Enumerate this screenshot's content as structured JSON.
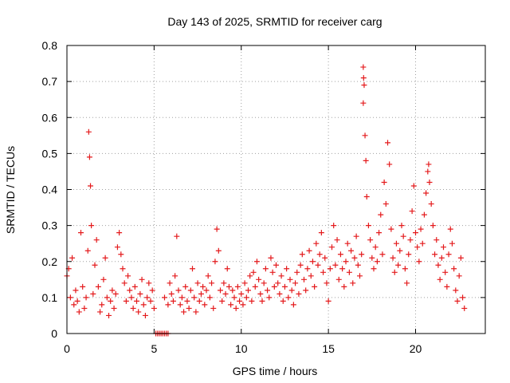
{
  "chart_data": {
    "type": "scatter",
    "title": "Day 143 of 2025, SRMTID for receiver carg",
    "xlabel": "GPS time / hours",
    "ylabel": "SRMTID / TECUs",
    "xlim": [
      0,
      24
    ],
    "ylim": [
      0,
      0.8
    ],
    "xticks": [
      0,
      5,
      10,
      15,
      20
    ],
    "xtick_labels": [
      "0",
      "5",
      "10",
      "15",
      "20"
    ],
    "yticks": [
      0,
      0.1,
      0.2,
      0.3,
      0.4,
      0.5,
      0.6,
      0.7,
      0.8
    ],
    "ytick_labels": [
      "0",
      "0.1",
      "0.2",
      "0.3",
      "0.4",
      "0.5",
      "0.6",
      "0.7",
      "0.8"
    ],
    "grid": true,
    "marker": "plus",
    "marker_color": "#e41a1c",
    "series": [
      {
        "name": "SRMTID",
        "points": [
          [
            0.0,
            0.16
          ],
          [
            0.1,
            0.18
          ],
          [
            0.2,
            0.1
          ],
          [
            0.3,
            0.21
          ],
          [
            0.4,
            0.08
          ],
          [
            0.5,
            0.12
          ],
          [
            0.6,
            0.09
          ],
          [
            0.7,
            0.06
          ],
          [
            0.8,
            0.28
          ],
          [
            0.9,
            0.13
          ],
          [
            1.0,
            0.07
          ],
          [
            1.1,
            0.1
          ],
          [
            1.2,
            0.23
          ],
          [
            1.25,
            0.56
          ],
          [
            1.3,
            0.49
          ],
          [
            1.35,
            0.41
          ],
          [
            1.4,
            0.3
          ],
          [
            1.5,
            0.11
          ],
          [
            1.6,
            0.19
          ],
          [
            1.7,
            0.26
          ],
          [
            1.8,
            0.13
          ],
          [
            1.9,
            0.06
          ],
          [
            2.0,
            0.08
          ],
          [
            2.1,
            0.15
          ],
          [
            2.2,
            0.21
          ],
          [
            2.3,
            0.1
          ],
          [
            2.4,
            0.05
          ],
          [
            2.5,
            0.09
          ],
          [
            2.6,
            0.12
          ],
          [
            2.7,
            0.07
          ],
          [
            2.8,
            0.11
          ],
          [
            2.9,
            0.24
          ],
          [
            3.0,
            0.28
          ],
          [
            3.1,
            0.22
          ],
          [
            3.2,
            0.18
          ],
          [
            3.3,
            0.14
          ],
          [
            3.4,
            0.09
          ],
          [
            3.5,
            0.16
          ],
          [
            3.6,
            0.12
          ],
          [
            3.7,
            0.1
          ],
          [
            3.8,
            0.07
          ],
          [
            3.9,
            0.13
          ],
          [
            4.0,
            0.09
          ],
          [
            4.1,
            0.06
          ],
          [
            4.2,
            0.11
          ],
          [
            4.3,
            0.15
          ],
          [
            4.4,
            0.08
          ],
          [
            4.5,
            0.05
          ],
          [
            4.6,
            0.1
          ],
          [
            4.7,
            0.14
          ],
          [
            4.8,
            0.09
          ],
          [
            4.9,
            0.12
          ],
          [
            5.0,
            0.07
          ],
          [
            5.1,
            0.0
          ],
          [
            5.2,
            0.0
          ],
          [
            5.3,
            0.0
          ],
          [
            5.4,
            0.0
          ],
          [
            5.5,
            0.0
          ],
          [
            5.6,
            0.0
          ],
          [
            5.7,
            0.0
          ],
          [
            5.8,
            0.0
          ],
          [
            5.6,
            0.1
          ],
          [
            5.8,
            0.08
          ],
          [
            5.9,
            0.14
          ],
          [
            6.0,
            0.11
          ],
          [
            6.1,
            0.09
          ],
          [
            6.2,
            0.16
          ],
          [
            6.3,
            0.27
          ],
          [
            6.4,
            0.12
          ],
          [
            6.5,
            0.08
          ],
          [
            6.6,
            0.1
          ],
          [
            6.7,
            0.06
          ],
          [
            6.8,
            0.13
          ],
          [
            6.9,
            0.09
          ],
          [
            7.0,
            0.07
          ],
          [
            7.1,
            0.12
          ],
          [
            7.2,
            0.18
          ],
          [
            7.3,
            0.1
          ],
          [
            7.4,
            0.06
          ],
          [
            7.5,
            0.14
          ],
          [
            7.6,
            0.09
          ],
          [
            7.7,
            0.11
          ],
          [
            7.8,
            0.13
          ],
          [
            7.9,
            0.08
          ],
          [
            8.0,
            0.12
          ],
          [
            8.1,
            0.16
          ],
          [
            8.2,
            0.1
          ],
          [
            8.3,
            0.14
          ],
          [
            8.4,
            0.07
          ],
          [
            8.5,
            0.2
          ],
          [
            8.6,
            0.29
          ],
          [
            8.7,
            0.23
          ],
          [
            8.8,
            0.12
          ],
          [
            8.9,
            0.09
          ],
          [
            9.0,
            0.14
          ],
          [
            9.1,
            0.11
          ],
          [
            9.2,
            0.18
          ],
          [
            9.3,
            0.13
          ],
          [
            9.4,
            0.08
          ],
          [
            9.5,
            0.12
          ],
          [
            9.6,
            0.1
          ],
          [
            9.7,
            0.07
          ],
          [
            9.8,
            0.13
          ],
          [
            9.9,
            0.09
          ],
          [
            10.0,
            0.11
          ],
          [
            10.1,
            0.08
          ],
          [
            10.2,
            0.14
          ],
          [
            10.3,
            0.1
          ],
          [
            10.4,
            0.12
          ],
          [
            10.5,
            0.16
          ],
          [
            10.6,
            0.09
          ],
          [
            10.7,
            0.17
          ],
          [
            10.8,
            0.13
          ],
          [
            10.9,
            0.2
          ],
          [
            11.0,
            0.15
          ],
          [
            11.1,
            0.11
          ],
          [
            11.2,
            0.09
          ],
          [
            11.3,
            0.14
          ],
          [
            11.4,
            0.18
          ],
          [
            11.5,
            0.12
          ],
          [
            11.6,
            0.1
          ],
          [
            11.7,
            0.21
          ],
          [
            11.8,
            0.17
          ],
          [
            11.9,
            0.13
          ],
          [
            12.0,
            0.19
          ],
          [
            12.1,
            0.14
          ],
          [
            12.2,
            0.11
          ],
          [
            12.3,
            0.16
          ],
          [
            12.4,
            0.09
          ],
          [
            12.5,
            0.13
          ],
          [
            12.6,
            0.18
          ],
          [
            12.7,
            0.1
          ],
          [
            12.8,
            0.15
          ],
          [
            12.9,
            0.12
          ],
          [
            13.0,
            0.08
          ],
          [
            13.1,
            0.14
          ],
          [
            13.2,
            0.17
          ],
          [
            13.3,
            0.11
          ],
          [
            13.4,
            0.19
          ],
          [
            13.5,
            0.22
          ],
          [
            13.6,
            0.15
          ],
          [
            13.7,
            0.12
          ],
          [
            13.8,
            0.18
          ],
          [
            13.9,
            0.23
          ],
          [
            14.0,
            0.16
          ],
          [
            14.1,
            0.2
          ],
          [
            14.2,
            0.13
          ],
          [
            14.3,
            0.25
          ],
          [
            14.4,
            0.19
          ],
          [
            14.5,
            0.22
          ],
          [
            14.6,
            0.28
          ],
          [
            14.7,
            0.17
          ],
          [
            14.8,
            0.21
          ],
          [
            14.9,
            0.14
          ],
          [
            15.0,
            0.09
          ],
          [
            15.1,
            0.18
          ],
          [
            15.2,
            0.24
          ],
          [
            15.3,
            0.3
          ],
          [
            15.4,
            0.19
          ],
          [
            15.5,
            0.26
          ],
          [
            15.6,
            0.15
          ],
          [
            15.7,
            0.22
          ],
          [
            15.8,
            0.18
          ],
          [
            15.9,
            0.13
          ],
          [
            16.0,
            0.2
          ],
          [
            16.1,
            0.25
          ],
          [
            16.2,
            0.17
          ],
          [
            16.3,
            0.23
          ],
          [
            16.4,
            0.14
          ],
          [
            16.5,
            0.21
          ],
          [
            16.6,
            0.27
          ],
          [
            16.7,
            0.19
          ],
          [
            16.8,
            0.16
          ],
          [
            16.9,
            0.22
          ],
          [
            17.0,
            0.74
          ],
          [
            17.02,
            0.71
          ],
          [
            17.05,
            0.69
          ],
          [
            17.0,
            0.64
          ],
          [
            17.1,
            0.55
          ],
          [
            17.15,
            0.48
          ],
          [
            17.2,
            0.38
          ],
          [
            17.3,
            0.3
          ],
          [
            17.4,
            0.26
          ],
          [
            17.5,
            0.21
          ],
          [
            17.6,
            0.18
          ],
          [
            17.7,
            0.24
          ],
          [
            17.8,
            0.2
          ],
          [
            17.9,
            0.28
          ],
          [
            18.0,
            0.33
          ],
          [
            18.1,
            0.22
          ],
          [
            18.2,
            0.42
          ],
          [
            18.3,
            0.36
          ],
          [
            18.4,
            0.53
          ],
          [
            18.5,
            0.47
          ],
          [
            18.6,
            0.29
          ],
          [
            18.7,
            0.21
          ],
          [
            18.8,
            0.17
          ],
          [
            18.9,
            0.25
          ],
          [
            19.0,
            0.19
          ],
          [
            19.1,
            0.23
          ],
          [
            19.2,
            0.3
          ],
          [
            19.3,
            0.27
          ],
          [
            19.4,
            0.18
          ],
          [
            19.5,
            0.14
          ],
          [
            19.6,
            0.22
          ],
          [
            19.7,
            0.26
          ],
          [
            19.8,
            0.34
          ],
          [
            19.9,
            0.41
          ],
          [
            20.0,
            0.28
          ],
          [
            20.1,
            0.24
          ],
          [
            20.2,
            0.2
          ],
          [
            20.3,
            0.29
          ],
          [
            20.4,
            0.25
          ],
          [
            20.5,
            0.33
          ],
          [
            20.6,
            0.39
          ],
          [
            20.7,
            0.45
          ],
          [
            20.75,
            0.47
          ],
          [
            20.8,
            0.42
          ],
          [
            20.9,
            0.36
          ],
          [
            21.0,
            0.3
          ],
          [
            21.1,
            0.22
          ],
          [
            21.2,
            0.26
          ],
          [
            21.3,
            0.19
          ],
          [
            21.4,
            0.15
          ],
          [
            21.5,
            0.21
          ],
          [
            21.6,
            0.24
          ],
          [
            21.7,
            0.17
          ],
          [
            21.8,
            0.13
          ],
          [
            21.9,
            0.22
          ],
          [
            22.0,
            0.29
          ],
          [
            22.1,
            0.25
          ],
          [
            22.2,
            0.18
          ],
          [
            22.3,
            0.12
          ],
          [
            22.4,
            0.09
          ],
          [
            22.5,
            0.16
          ],
          [
            22.6,
            0.21
          ],
          [
            22.7,
            0.1
          ],
          [
            22.8,
            0.07
          ]
        ]
      }
    ]
  }
}
